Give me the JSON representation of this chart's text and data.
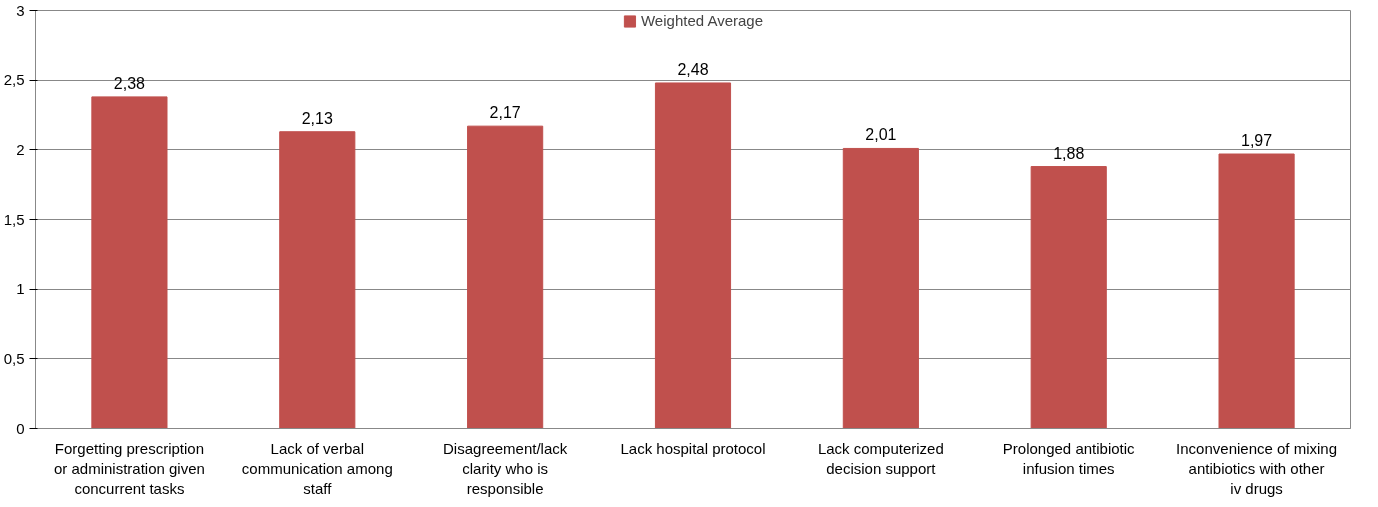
{
  "chart_data": {
    "type": "bar",
    "categories": [
      "Forgetting prescription or administration given concurrent tasks",
      "Lack of verbal communication among staff",
      "Disagreement/lack clarity who is responsible",
      "Lack hospital protocol",
      "Lack computerized decision support",
      "Prolonged antibiotic infusion times",
      "Inconvenience of mixing antibiotics with other iv drugs"
    ],
    "series": [
      {
        "name": "Weighted Average",
        "color": "#c0504d",
        "values": [
          2.38,
          2.13,
          2.17,
          2.48,
          2.01,
          1.88,
          1.97
        ],
        "value_labels": [
          "2,38",
          "2,13",
          "2,17",
          "2,48",
          "2,01",
          "1,88",
          "1,97"
        ]
      }
    ],
    "ylim": [
      0,
      3
    ],
    "yticks": [
      0,
      {
        "value": 0.5,
        "label": "0,5"
      },
      1,
      {
        "value": 1.5,
        "label": "1,5"
      },
      2,
      {
        "value": 2.5,
        "label": "2,5"
      },
      3
    ],
    "grid": "y",
    "legend": "top"
  }
}
